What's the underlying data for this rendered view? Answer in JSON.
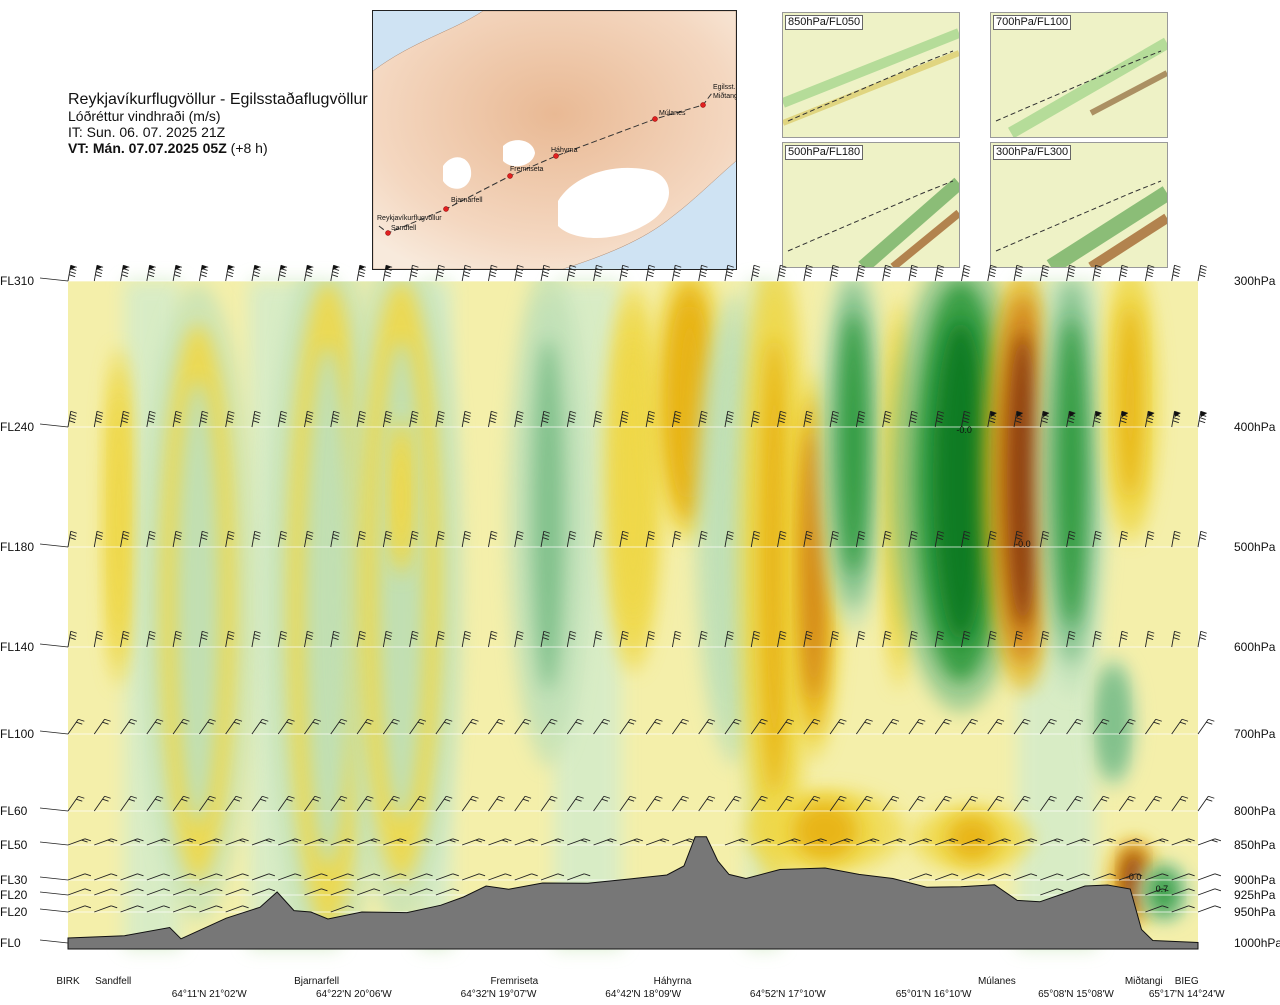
{
  "header": {
    "title": "Reykjavíkurflugvöllur - Egilsstaðaflugvöllur",
    "subtitle": "Lóðréttur vindhraði (m/s)",
    "issue_time": "IT: Sun. 06. 07. 2025 21Z",
    "valid_time_bold": "VT: Mán. 07.07.2025 05Z",
    "valid_time_offset": "(+8 h)"
  },
  "map_inset": {
    "places": [
      "Reykjavíkurflugvöllur",
      "Sandfell",
      "Bjarnarfell",
      "Fremriseta",
      "Háhyrna",
      "Múlanes",
      "Egilsst.",
      "Miðtangi"
    ]
  },
  "mini_maps": [
    {
      "label": "850hPa/FL050"
    },
    {
      "label": "700hPa/FL100"
    },
    {
      "label": "500hPa/FL180"
    },
    {
      "label": "300hPa/FL300"
    }
  ],
  "chart_data": {
    "type": "heatmap",
    "title": "Lóðréttur vindhraði (m/s)",
    "y_left_labels": [
      {
        "label": "FL310",
        "hpa": 300
      },
      {
        "label": "FL240",
        "hpa": 400
      },
      {
        "label": "FL180",
        "hpa": 500
      },
      {
        "label": "FL140",
        "hpa": 600
      },
      {
        "label": "FL100",
        "hpa": 700
      },
      {
        "label": "FL60",
        "hpa": 800
      },
      {
        "label": "FL50",
        "hpa": 850
      },
      {
        "label": "FL30",
        "hpa": 900
      },
      {
        "label": "FL20",
        "hpa": 925
      },
      {
        "label": "FL20",
        "hpa": 950
      },
      {
        "label": "FL0",
        "hpa": 1000
      }
    ],
    "y_right_labels": [
      {
        "label": "300hPa",
        "hpa": 300
      },
      {
        "label": "400hPa",
        "hpa": 400
      },
      {
        "label": "500hPa",
        "hpa": 500
      },
      {
        "label": "600hPa",
        "hpa": 600
      },
      {
        "label": "700hPa",
        "hpa": 700
      },
      {
        "label": "800hPa",
        "hpa": 800
      },
      {
        "label": "850hPa",
        "hpa": 850
      },
      {
        "label": "900hPa",
        "hpa": 900
      },
      {
        "label": "925hPa",
        "hpa": 925
      },
      {
        "label": "950hPa",
        "hpa": 950
      },
      {
        "label": "1000hPa",
        "hpa": 1000
      }
    ],
    "ylim_hpa": [
      300,
      1000
    ],
    "x_locations": [
      {
        "name": "BIRK",
        "frac": 0.0
      },
      {
        "name": "Sandfell",
        "frac": 0.04
      },
      {
        "name": "Bjarnarfell",
        "frac": 0.22
      },
      {
        "name": "Fremriseta",
        "frac": 0.395
      },
      {
        "name": "Háhyrna",
        "frac": 0.535
      },
      {
        "name": "Múlanes",
        "frac": 0.822
      },
      {
        "name": "Miðtangi",
        "frac": 0.952
      },
      {
        "name": "BIEG",
        "frac": 0.99
      }
    ],
    "x_coords": [
      {
        "label": "64°11'N 21°02'W",
        "frac": 0.125
      },
      {
        "label": "64°22'N 20°06'W",
        "frac": 0.253
      },
      {
        "label": "64°32'N 19°07'W",
        "frac": 0.381
      },
      {
        "label": "64°42'N 18°09'W",
        "frac": 0.509
      },
      {
        "label": "64°52'N 17°10'W",
        "frac": 0.637
      },
      {
        "label": "65°01'N 16°10'W",
        "frac": 0.766
      },
      {
        "label": "65°08'N 15°08'W",
        "frac": 0.892
      },
      {
        "label": "65°17'N 14°24'W",
        "frac": 0.99
      }
    ],
    "annotations": [
      {
        "text": "-0.0",
        "frac": 0.793,
        "hpa": 405
      },
      {
        "text": "-0.0",
        "frac": 0.845,
        "hpa": 500
      },
      {
        "text": "-0.0",
        "frac": 0.943,
        "hpa": 900
      },
      {
        "text": "0.7",
        "frac": 0.968,
        "hpa": 920
      }
    ],
    "field_blobs": [
      {
        "frac": 0.045,
        "hpa_top": 360,
        "hpa_bot": 620,
        "w": 0.008,
        "val": -0.4
      },
      {
        "frac": 0.115,
        "hpa_top": 330,
        "hpa_bot": 900,
        "w": 0.028,
        "val": 0.3
      },
      {
        "frac": 0.23,
        "hpa_top": 300,
        "hpa_bot": 980,
        "w": 0.03,
        "val": 0.25
      },
      {
        "frac": 0.295,
        "hpa_top": 300,
        "hpa_bot": 900,
        "w": 0.03,
        "val": 0.3
      },
      {
        "frac": 0.295,
        "hpa_top": 400,
        "hpa_bot": 520,
        "w": 0.006,
        "val": -0.4
      },
      {
        "frac": 0.425,
        "hpa_top": 310,
        "hpa_bot": 700,
        "w": 0.02,
        "val": 0.6
      },
      {
        "frac": 0.5,
        "hpa_top": 320,
        "hpa_bot": 600,
        "w": 0.015,
        "val": -0.3
      },
      {
        "frac": 0.55,
        "hpa_top": 300,
        "hpa_bot": 480,
        "w": 0.02,
        "val": -1.0
      },
      {
        "frac": 0.59,
        "hpa_top": 330,
        "hpa_bot": 700,
        "w": 0.02,
        "val": 0.5
      },
      {
        "frac": 0.625,
        "hpa_top": 300,
        "hpa_bot": 860,
        "w": 0.018,
        "val": -0.6
      },
      {
        "frac": 0.66,
        "hpa_top": 380,
        "hpa_bot": 700,
        "w": 0.014,
        "val": -1.3
      },
      {
        "frac": 0.695,
        "hpa_top": 300,
        "hpa_bot": 560,
        "w": 0.018,
        "val": 1.6
      },
      {
        "frac": 0.735,
        "hpa_top": 330,
        "hpa_bot": 620,
        "w": 0.008,
        "val": -0.5
      },
      {
        "frac": 0.79,
        "hpa_top": 300,
        "hpa_bot": 640,
        "w": 0.035,
        "val": 2.4
      },
      {
        "frac": 0.845,
        "hpa_top": 310,
        "hpa_bot": 620,
        "w": 0.02,
        "val": -2.6
      },
      {
        "frac": 0.888,
        "hpa_top": 300,
        "hpa_bot": 620,
        "w": 0.018,
        "val": 1.6
      },
      {
        "frac": 0.94,
        "hpa_top": 300,
        "hpa_bot": 480,
        "w": 0.014,
        "val": -0.7
      },
      {
        "frac": 0.925,
        "hpa_top": 620,
        "hpa_bot": 760,
        "w": 0.012,
        "val": 1.0
      },
      {
        "frac": 0.943,
        "hpa_top": 850,
        "hpa_bot": 960,
        "w": 0.012,
        "val": -2.6
      },
      {
        "frac": 0.97,
        "hpa_top": 880,
        "hpa_bot": 960,
        "w": 0.014,
        "val": 1.8
      },
      {
        "frac": 0.8,
        "hpa_top": 800,
        "hpa_bot": 880,
        "w": 0.03,
        "val": -0.8
      },
      {
        "frac": 0.67,
        "hpa_top": 780,
        "hpa_bot": 880,
        "w": 0.04,
        "val": -0.6
      }
    ],
    "terrain_hpa": [
      [
        0.0,
        992
      ],
      [
        0.05,
        985
      ],
      [
        0.09,
        975
      ],
      [
        0.1,
        990
      ],
      [
        0.14,
        960
      ],
      [
        0.17,
        940
      ],
      [
        0.185,
        920
      ],
      [
        0.2,
        945
      ],
      [
        0.215,
        950
      ],
      [
        0.23,
        958
      ],
      [
        0.26,
        950
      ],
      [
        0.3,
        948
      ],
      [
        0.33,
        940
      ],
      [
        0.35,
        925
      ],
      [
        0.37,
        910
      ],
      [
        0.39,
        912
      ],
      [
        0.42,
        905
      ],
      [
        0.46,
        902
      ],
      [
        0.5,
        898
      ],
      [
        0.53,
        890
      ],
      [
        0.545,
        880
      ],
      [
        0.555,
        835
      ],
      [
        0.565,
        838
      ],
      [
        0.575,
        870
      ],
      [
        0.585,
        892
      ],
      [
        0.6,
        895
      ],
      [
        0.63,
        885
      ],
      [
        0.67,
        880
      ],
      [
        0.7,
        892
      ],
      [
        0.73,
        895
      ],
      [
        0.76,
        912
      ],
      [
        0.79,
        908
      ],
      [
        0.82,
        908
      ],
      [
        0.84,
        930
      ],
      [
        0.86,
        935
      ],
      [
        0.88,
        920
      ],
      [
        0.9,
        910
      ],
      [
        0.92,
        905
      ],
      [
        0.94,
        915
      ],
      [
        0.95,
        975
      ],
      [
        0.96,
        996
      ],
      [
        1.0,
        996
      ]
    ],
    "grid": true,
    "legend": "none"
  }
}
